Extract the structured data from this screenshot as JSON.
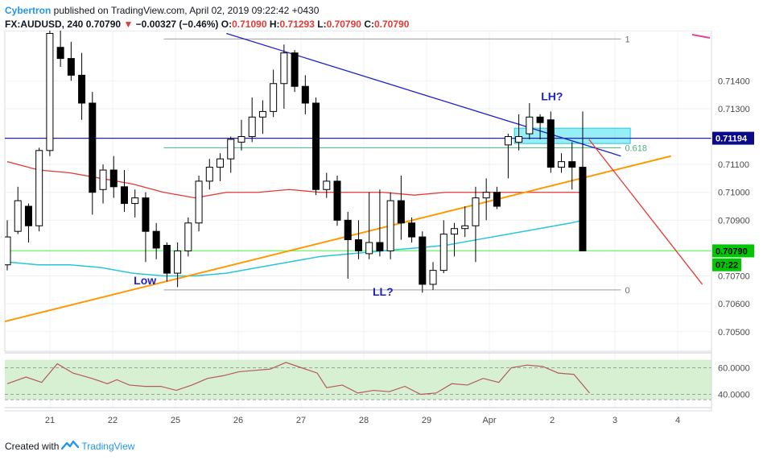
{
  "header": {
    "author": "Cybertron",
    "published": " published on TradingView.com, April 02, 2019 09:22:42 +0430",
    "symbol": "FX:AUDUSD, 240",
    "last": "0.70790",
    "change": "−0.00327 (−0.46%)",
    "o_label": "O:",
    "o": "0.71090",
    "h_label": "H:",
    "h": "0.71293",
    "l_label": "L:",
    "l": "0.70790",
    "c_label": "C:",
    "c": "0.70790"
  },
  "footer": {
    "created_with": "Created with",
    "brand": "TradingView"
  },
  "colors": {
    "up_candle": "#ffffff",
    "down_candle": "#000000",
    "ma_red": "#e53935",
    "ma_cyan": "#26c6da",
    "trend_orange": "#ff9800",
    "trend_blue": "#1e22c8",
    "hline_green": "#66ff66",
    "fib_green": "#4caf7d",
    "rsi_bg": "#d7f0d2",
    "rsi_line": "#b55a5a",
    "price_tag": "#0b0b8a",
    "last_tag": "#00c800"
  },
  "chart_data": [
    {
      "type": "candlestick",
      "x_axis": {
        "tick_labels": [
          "21",
          "22",
          "25",
          "26",
          "27",
          "28",
          "29",
          "Apr",
          "2",
          "3",
          "4"
        ]
      },
      "y_axis": {
        "ylim": [
          0.7043,
          0.7158
        ],
        "tick_values": [
          0.714,
          0.713,
          0.711,
          0.71,
          0.709,
          0.707,
          0.706,
          0.705
        ],
        "tick_labels": [
          "0.71400",
          "0.71300",
          "0.71100",
          "0.71000",
          "0.70900",
          "0.70700",
          "0.70600",
          "0.70500"
        ]
      },
      "price_tags": [
        {
          "label": "0.71194",
          "value": 0.71194,
          "style": "blue"
        },
        {
          "label": "0.70790",
          "value": 0.7079,
          "style": "green"
        },
        {
          "label": "07:22",
          "value": 0.7074,
          "style": "green"
        }
      ],
      "candles": [
        {
          "x": 0.0,
          "o": 0.7074,
          "h": 0.709,
          "l": 0.7072,
          "c": 0.7084
        },
        {
          "x": 0.17,
          "o": 0.7086,
          "h": 0.7102,
          "l": 0.7085,
          "c": 0.7097
        },
        {
          "x": 0.34,
          "o": 0.7095,
          "h": 0.7096,
          "l": 0.7082,
          "c": 0.7088
        },
        {
          "x": 0.51,
          "o": 0.7088,
          "h": 0.7116,
          "l": 0.7086,
          "c": 0.7115
        },
        {
          "x": 0.68,
          "o": 0.7115,
          "h": 0.7158,
          "l": 0.7113,
          "c": 0.7157
        },
        {
          "x": 0.85,
          "o": 0.7152,
          "h": 0.7158,
          "l": 0.7145,
          "c": 0.7148
        },
        {
          "x": 1.02,
          "o": 0.7148,
          "h": 0.7154,
          "l": 0.714,
          "c": 0.7142
        },
        {
          "x": 1.19,
          "o": 0.7142,
          "h": 0.715,
          "l": 0.7126,
          "c": 0.7132
        },
        {
          "x": 1.36,
          "o": 0.7132,
          "h": 0.7136,
          "l": 0.7092,
          "c": 0.71
        },
        {
          "x": 1.53,
          "o": 0.7101,
          "h": 0.711,
          "l": 0.7096,
          "c": 0.7108
        },
        {
          "x": 1.7,
          "o": 0.7108,
          "h": 0.7113,
          "l": 0.7098,
          "c": 0.7102
        },
        {
          "x": 1.87,
          "o": 0.7102,
          "h": 0.7108,
          "l": 0.7093,
          "c": 0.7096
        },
        {
          "x": 2.04,
          "o": 0.7096,
          "h": 0.7101,
          "l": 0.7091,
          "c": 0.7098
        },
        {
          "x": 2.21,
          "o": 0.7098,
          "h": 0.71,
          "l": 0.7075,
          "c": 0.7086
        },
        {
          "x": 2.38,
          "o": 0.7086,
          "h": 0.7089,
          "l": 0.7076,
          "c": 0.708
        },
        {
          "x": 2.55,
          "o": 0.7081,
          "h": 0.7082,
          "l": 0.7068,
          "c": 0.7071
        },
        {
          "x": 2.72,
          "o": 0.7071,
          "h": 0.7082,
          "l": 0.7066,
          "c": 0.7079
        },
        {
          "x": 2.89,
          "o": 0.7079,
          "h": 0.7091,
          "l": 0.7077,
          "c": 0.7089
        },
        {
          "x": 3.06,
          "o": 0.7089,
          "h": 0.7106,
          "l": 0.7086,
          "c": 0.7104
        },
        {
          "x": 3.23,
          "o": 0.7104,
          "h": 0.7112,
          "l": 0.7101,
          "c": 0.7109
        },
        {
          "x": 3.4,
          "o": 0.7109,
          "h": 0.7114,
          "l": 0.7104,
          "c": 0.7112
        },
        {
          "x": 3.57,
          "o": 0.7112,
          "h": 0.712,
          "l": 0.7107,
          "c": 0.7119
        },
        {
          "x": 3.74,
          "o": 0.7118,
          "h": 0.7126,
          "l": 0.7115,
          "c": 0.712
        },
        {
          "x": 3.91,
          "o": 0.712,
          "h": 0.7134,
          "l": 0.7118,
          "c": 0.7127
        },
        {
          "x": 4.08,
          "o": 0.7127,
          "h": 0.7133,
          "l": 0.7121,
          "c": 0.7129
        },
        {
          "x": 4.25,
          "o": 0.7129,
          "h": 0.7144,
          "l": 0.7127,
          "c": 0.7139
        },
        {
          "x": 4.42,
          "o": 0.7139,
          "h": 0.7153,
          "l": 0.713,
          "c": 0.715
        },
        {
          "x": 4.59,
          "o": 0.715,
          "h": 0.7151,
          "l": 0.7136,
          "c": 0.7138
        },
        {
          "x": 4.76,
          "o": 0.7138,
          "h": 0.7142,
          "l": 0.7128,
          "c": 0.7132
        },
        {
          "x": 4.93,
          "o": 0.7132,
          "h": 0.7134,
          "l": 0.7099,
          "c": 0.7101
        },
        {
          "x": 5.1,
          "o": 0.7101,
          "h": 0.7107,
          "l": 0.7098,
          "c": 0.7104
        },
        {
          "x": 5.27,
          "o": 0.7104,
          "h": 0.7106,
          "l": 0.7088,
          "c": 0.709
        },
        {
          "x": 5.44,
          "o": 0.709,
          "h": 0.7093,
          "l": 0.7069,
          "c": 0.7083
        },
        {
          "x": 5.61,
          "o": 0.7083,
          "h": 0.709,
          "l": 0.7076,
          "c": 0.7079
        },
        {
          "x": 5.78,
          "o": 0.7078,
          "h": 0.71,
          "l": 0.7076,
          "c": 0.7082
        },
        {
          "x": 5.95,
          "o": 0.7082,
          "h": 0.7101,
          "l": 0.7077,
          "c": 0.7079
        },
        {
          "x": 6.12,
          "o": 0.7079,
          "h": 0.71,
          "l": 0.7076,
          "c": 0.7097
        },
        {
          "x": 6.29,
          "o": 0.7097,
          "h": 0.7106,
          "l": 0.7083,
          "c": 0.7089
        },
        {
          "x": 6.46,
          "o": 0.7089,
          "h": 0.7091,
          "l": 0.7082,
          "c": 0.7084
        },
        {
          "x": 6.63,
          "o": 0.7084,
          "h": 0.7086,
          "l": 0.7064,
          "c": 0.7067
        },
        {
          "x": 6.8,
          "o": 0.7067,
          "h": 0.7075,
          "l": 0.7065,
          "c": 0.7072
        },
        {
          "x": 6.97,
          "o": 0.7072,
          "h": 0.709,
          "l": 0.7071,
          "c": 0.7085
        },
        {
          "x": 7.14,
          "o": 0.7085,
          "h": 0.7089,
          "l": 0.7077,
          "c": 0.7087
        },
        {
          "x": 7.31,
          "o": 0.7087,
          "h": 0.7095,
          "l": 0.7084,
          "c": 0.7088
        },
        {
          "x": 7.48,
          "o": 0.7088,
          "h": 0.7102,
          "l": 0.7075,
          "c": 0.7098
        },
        {
          "x": 7.65,
          "o": 0.7098,
          "h": 0.7105,
          "l": 0.709,
          "c": 0.71
        },
        {
          "x": 7.82,
          "o": 0.71,
          "h": 0.7102,
          "l": 0.7094,
          "c": 0.7095
        },
        {
          "x": 8.0,
          "o": 0.7117,
          "h": 0.7121,
          "l": 0.7105,
          "c": 0.712
        },
        {
          "x": 8.17,
          "o": 0.7118,
          "h": 0.7128,
          "l": 0.7115,
          "c": 0.712
        },
        {
          "x": 8.34,
          "o": 0.7121,
          "h": 0.7132,
          "l": 0.7119,
          "c": 0.7127
        },
        {
          "x": 8.51,
          "o": 0.7127,
          "h": 0.7128,
          "l": 0.7119,
          "c": 0.7125
        },
        {
          "x": 8.68,
          "o": 0.7126,
          "h": 0.7129,
          "l": 0.7107,
          "c": 0.7109
        },
        {
          "x": 8.85,
          "o": 0.7109,
          "h": 0.7114,
          "l": 0.7107,
          "c": 0.7111
        },
        {
          "x": 9.02,
          "o": 0.7111,
          "h": 0.7118,
          "l": 0.7101,
          "c": 0.7109
        },
        {
          "x": 9.19,
          "o": 0.7109,
          "h": 0.7129,
          "l": 0.7079,
          "c": 0.7079
        }
      ],
      "ma_red": [
        [
          0.0,
          0.7111
        ],
        [
          0.5,
          0.7108
        ],
        [
          1.0,
          0.7107
        ],
        [
          1.5,
          0.7105
        ],
        [
          2.0,
          0.7103
        ],
        [
          2.5,
          0.71
        ],
        [
          3.0,
          0.7098
        ],
        [
          3.5,
          0.71
        ],
        [
          4.0,
          0.71
        ],
        [
          4.5,
          0.7101
        ],
        [
          5.0,
          0.71
        ],
        [
          5.5,
          0.71
        ],
        [
          6.0,
          0.71
        ],
        [
          6.5,
          0.7099
        ],
        [
          7.0,
          0.71
        ],
        [
          7.5,
          0.71
        ],
        [
          8.0,
          0.71
        ],
        [
          8.5,
          0.71
        ],
        [
          9.0,
          0.71
        ],
        [
          9.2,
          0.71
        ]
      ],
      "ma_cyan": [
        [
          0.0,
          0.7075
        ],
        [
          0.5,
          0.7074
        ],
        [
          1.0,
          0.7074
        ],
        [
          1.5,
          0.7073
        ],
        [
          2.0,
          0.7071
        ],
        [
          2.5,
          0.707
        ],
        [
          3.0,
          0.707
        ],
        [
          3.5,
          0.7071
        ],
        [
          4.0,
          0.7073
        ],
        [
          4.5,
          0.7075
        ],
        [
          5.0,
          0.7077
        ],
        [
          5.5,
          0.7078
        ],
        [
          6.0,
          0.7079
        ],
        [
          6.5,
          0.708
        ],
        [
          7.0,
          0.7081
        ],
        [
          7.5,
          0.7083
        ],
        [
          8.0,
          0.7085
        ],
        [
          8.5,
          0.7087
        ],
        [
          9.0,
          0.7089
        ],
        [
          9.2,
          0.709
        ]
      ],
      "trendlines": [
        {
          "name": "support",
          "points": [
            [
              -0.7,
              0.705
            ],
            [
              10.6,
              0.7113
            ]
          ],
          "color": "orange"
        },
        {
          "name": "resistance",
          "points": [
            [
              3.5,
              0.7157
            ],
            [
              9.8,
              0.7113
            ]
          ],
          "color": "blue"
        },
        {
          "name": "projection",
          "points": [
            [
              9.29,
              0.7119
            ],
            [
              11.1,
              0.7067
            ]
          ],
          "color": "red"
        }
      ],
      "horizontal_lines": [
        {
          "value": 0.71194,
          "color": "blue"
        },
        {
          "value": 0.7079,
          "color": "green"
        }
      ],
      "fib": {
        "levels": [
          {
            "label": "1",
            "value": 0.7155
          },
          {
            "label": "0.618",
            "value": 0.7116
          },
          {
            "label": "0",
            "value": 0.7065
          }
        ],
        "x_start": 2.5,
        "x_end": 9.8
      },
      "zone": {
        "x_start": 8.1,
        "x_end": 9.95,
        "y_top": 0.7123,
        "y_bottom": 0.71175
      },
      "annotations": [
        {
          "text": "Low",
          "x": 2.2,
          "y": 0.7067
        },
        {
          "text": "LL?",
          "x": 6.0,
          "y": 0.7063
        },
        {
          "text": "LH?",
          "x": 8.7,
          "y": 0.7133
        }
      ]
    },
    {
      "type": "line",
      "y_axis": {
        "ylim": [
          30,
          70
        ],
        "tick_values": [
          60,
          40
        ],
        "tick_labels": [
          "60.0000",
          "40.0000"
        ],
        "band": [
          36,
          66
        ]
      },
      "series": [
        {
          "values": [
            [
              0.0,
              48
            ],
            [
              0.3,
              53
            ],
            [
              0.55,
              49
            ],
            [
              0.8,
              63
            ],
            [
              1.05,
              56
            ],
            [
              1.35,
              52
            ],
            [
              1.6,
              48
            ],
            [
              1.75,
              51
            ],
            [
              1.95,
              47
            ],
            [
              2.2,
              46
            ],
            [
              2.45,
              46
            ],
            [
              2.7,
              43
            ],
            [
              2.95,
              47
            ],
            [
              3.2,
              52
            ],
            [
              3.45,
              54
            ],
            [
              3.7,
              57
            ],
            [
              3.95,
              58
            ],
            [
              4.2,
              59
            ],
            [
              4.45,
              64
            ],
            [
              4.7,
              60
            ],
            [
              4.95,
              56
            ],
            [
              5.1,
              45
            ],
            [
              5.35,
              47
            ],
            [
              5.6,
              41
            ],
            [
              5.85,
              43
            ],
            [
              6.1,
              42
            ],
            [
              6.35,
              46
            ],
            [
              6.6,
              40
            ],
            [
              6.85,
              41
            ],
            [
              7.1,
              48
            ],
            [
              7.35,
              47
            ],
            [
              7.6,
              52
            ],
            [
              7.85,
              49
            ],
            [
              8.05,
              60
            ],
            [
              8.3,
              62
            ],
            [
              8.55,
              61
            ],
            [
              8.8,
              56
            ],
            [
              9.05,
              55
            ],
            [
              9.3,
              41
            ]
          ]
        }
      ]
    }
  ]
}
